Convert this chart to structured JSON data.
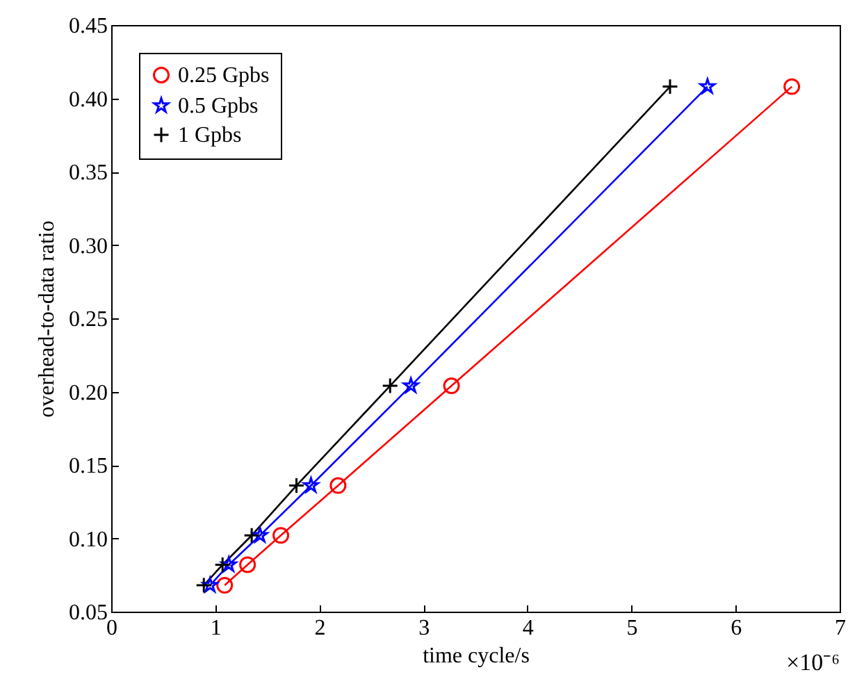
{
  "chart_data": {
    "type": "line",
    "xlabel": "time cycle/s",
    "ylabel": "overhead-to-data ratio",
    "xlim": [
      0,
      7
    ],
    "xticks": [
      0,
      1,
      2,
      3,
      4,
      5,
      6,
      7
    ],
    "ylim": [
      0.05,
      0.45
    ],
    "yticks": [
      {
        "value": 0.05,
        "label": "0.05"
      },
      {
        "value": 0.1,
        "label": "0.10"
      },
      {
        "value": 0.15,
        "label": "0.15"
      },
      {
        "value": 0.2,
        "label": "0.20"
      },
      {
        "value": 0.25,
        "label": "0.25"
      },
      {
        "value": 0.3,
        "label": "0.30"
      },
      {
        "value": 0.35,
        "label": "0.35"
      },
      {
        "value": 0.4,
        "label": "0.40"
      },
      {
        "value": 0.45,
        "label": "0.45"
      }
    ],
    "annotations": [
      "×10⁻⁶"
    ],
    "grid": false,
    "legend": "top left",
    "line_style": "solid",
    "series": [
      {
        "name": "0.25 Gpbs",
        "color": "#ff0000",
        "marker": "circle",
        "x": [
          1.09,
          1.31,
          1.63,
          2.18,
          3.27,
          6.54
        ],
        "values": [
          0.068,
          0.082,
          0.102,
          0.136,
          0.204,
          0.408
        ]
      },
      {
        "name": "0.5 Gpbs",
        "color": "#0000ff",
        "marker": "star",
        "x": [
          0.95,
          1.13,
          1.43,
          1.92,
          2.88,
          5.73
        ],
        "values": [
          0.068,
          0.082,
          0.102,
          0.136,
          0.204,
          0.408
        ]
      },
      {
        "name": "1 Gpbs",
        "color": "#000000",
        "marker": "cross",
        "x": [
          0.89,
          1.07,
          1.35,
          1.78,
          2.68,
          5.37
        ],
        "values": [
          0.068,
          0.082,
          0.102,
          0.136,
          0.204,
          0.408
        ]
      }
    ]
  }
}
